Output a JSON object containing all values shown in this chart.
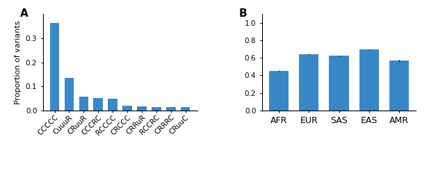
{
  "panel_a": {
    "categories": [
      "CCCCC",
      "CuuuR",
      "CRuuR",
      "CCCRC",
      "RCCCC",
      "CRCCC",
      "CRRuR",
      "RCCRC",
      "CRRRC",
      "CRuuC"
    ],
    "values": [
      0.365,
      0.135,
      0.058,
      0.052,
      0.048,
      0.018,
      0.016,
      0.015,
      0.013,
      0.013
    ],
    "ylabel": "Proportion of variants",
    "bar_color": "#3a87c8",
    "ylim": [
      0,
      0.4
    ],
    "yticks": [
      0.0,
      0.1,
      0.2,
      0.3
    ],
    "ytick_labels": [
      "0.0",
      "0.1",
      "0.2",
      "0.3"
    ]
  },
  "panel_b": {
    "categories": [
      "AFR",
      "EUR",
      "SAS",
      "EAS",
      "AMR"
    ],
    "values": [
      0.455,
      0.645,
      0.625,
      0.695,
      0.57
    ],
    "errors": [
      0.006,
      0.004,
      0.004,
      0.004,
      0.005
    ],
    "bar_color": "#3a87c8",
    "ylim": [
      0.0,
      1.1
    ],
    "yticks": [
      0.0,
      0.2,
      0.4,
      0.6,
      0.8,
      1.0
    ],
    "ytick_labels": [
      "0.0",
      "0.2",
      "0.4",
      "0.6",
      "0.8",
      "1.0"
    ]
  },
  "bar_color": "#3a87c8",
  "label_a": "A",
  "label_b": "B",
  "background_color": "#ffffff",
  "fontsize_ylabel": 8,
  "fontsize_ticks": 7.5,
  "fontsize_xticklabels_b": 9,
  "fontsize_panel_label": 11
}
